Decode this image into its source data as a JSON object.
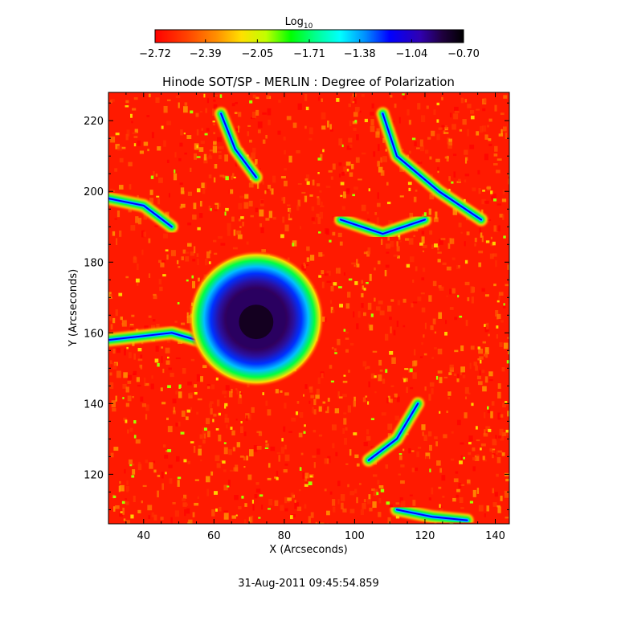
{
  "chart_data": {
    "type": "heatmap",
    "title": "Hinode SOT/SP - MERLIN : Degree of Polarization",
    "xlabel": "X (Arcseconds)",
    "ylabel": "Y (Arcseconds)",
    "xlim": [
      30,
      144
    ],
    "ylim": [
      106,
      228
    ],
    "x_ticks": [
      40,
      60,
      80,
      100,
      120,
      140
    ],
    "x_tick_labels": [
      "40",
      "60",
      "80",
      "100",
      "120",
      "140"
    ],
    "y_ticks": [
      120,
      140,
      160,
      180,
      200,
      220
    ],
    "y_tick_labels": [
      "120",
      "140",
      "160",
      "180",
      "200",
      "220"
    ],
    "colorbar": {
      "label_main": "Log",
      "label_sub": "10",
      "range": [
        -2.72,
        -0.7
      ],
      "ticks": [
        -2.72,
        -2.39,
        -2.05,
        -1.71,
        -1.38,
        -1.04,
        -0.7
      ],
      "tick_labels": [
        "−2.72",
        "−2.39",
        "−2.05",
        "−1.71",
        "−1.38",
        "−1.04",
        "−0.70"
      ],
      "colors": [
        "#ff0000",
        "#ff8000",
        "#ffff00",
        "#00ff00",
        "#00ffff",
        "#0000ff",
        "#000000"
      ]
    },
    "features": {
      "sunspot": {
        "x": 72,
        "y": 164,
        "umbra_radius": 7,
        "penumbra_radius": 13
      },
      "network_lanes": [
        {
          "points": [
            [
              108,
              222
            ],
            [
              112,
              210
            ],
            [
              124,
              200
            ],
            [
              136,
              192
            ]
          ]
        },
        {
          "points": [
            [
              30,
              158
            ],
            [
              48,
              160
            ],
            [
              62,
              156
            ],
            [
              78,
              150
            ]
          ]
        },
        {
          "points": [
            [
              96,
              192
            ],
            [
              108,
              188
            ],
            [
              120,
              192
            ]
          ]
        },
        {
          "points": [
            [
              118,
              140
            ],
            [
              112,
              130
            ],
            [
              104,
              124
            ]
          ]
        },
        {
          "points": [
            [
              112,
              110
            ],
            [
              122,
              108
            ],
            [
              132,
              107
            ]
          ]
        },
        {
          "points": [
            [
              62,
              222
            ],
            [
              66,
              212
            ],
            [
              72,
              204
            ]
          ]
        },
        {
          "points": [
            [
              30,
              198
            ],
            [
              40,
              196
            ],
            [
              48,
              190
            ]
          ]
        }
      ]
    },
    "grid": false,
    "legend": "colorbar-top"
  },
  "footer": {
    "timestamp": "31-Aug-2011 09:45:54.859"
  }
}
